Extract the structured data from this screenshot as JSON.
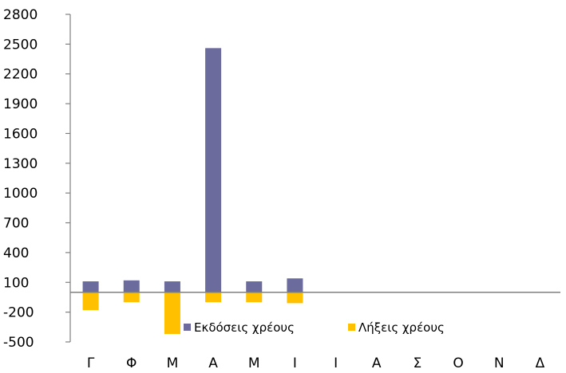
{
  "chart_data": {
    "type": "bar",
    "stacked": true,
    "categories": [
      "Γ",
      "Φ",
      "Μ",
      "Α",
      "Μ",
      "Ι",
      "Ι",
      "Α",
      "Σ",
      "Ο",
      "Ν",
      "Δ"
    ],
    "series": [
      {
        "name": "Εκδόσεις χρέους",
        "color": "#6B6B9E",
        "values": [
          110,
          120,
          110,
          2460,
          110,
          140,
          null,
          null,
          null,
          null,
          null,
          null
        ]
      },
      {
        "name": "Λήξεις χρέους",
        "color": "#FFC000",
        "values": [
          -180,
          -100,
          -420,
          -100,
          -100,
          -110,
          null,
          null,
          null,
          null,
          null,
          null
        ]
      }
    ],
    "yticks": [
      "2800",
      "2500",
      "2200",
      "1900",
      "1600",
      "1300",
      "1000",
      "700",
      "400",
      "100",
      "-200",
      "-500"
    ],
    "ylim": [
      -500,
      2800
    ],
    "title": "",
    "xlabel": "",
    "ylabel": "",
    "legend_position": "bottom-inside",
    "grid": false,
    "axis_color": "#808080",
    "baseline_color": "#808080"
  }
}
